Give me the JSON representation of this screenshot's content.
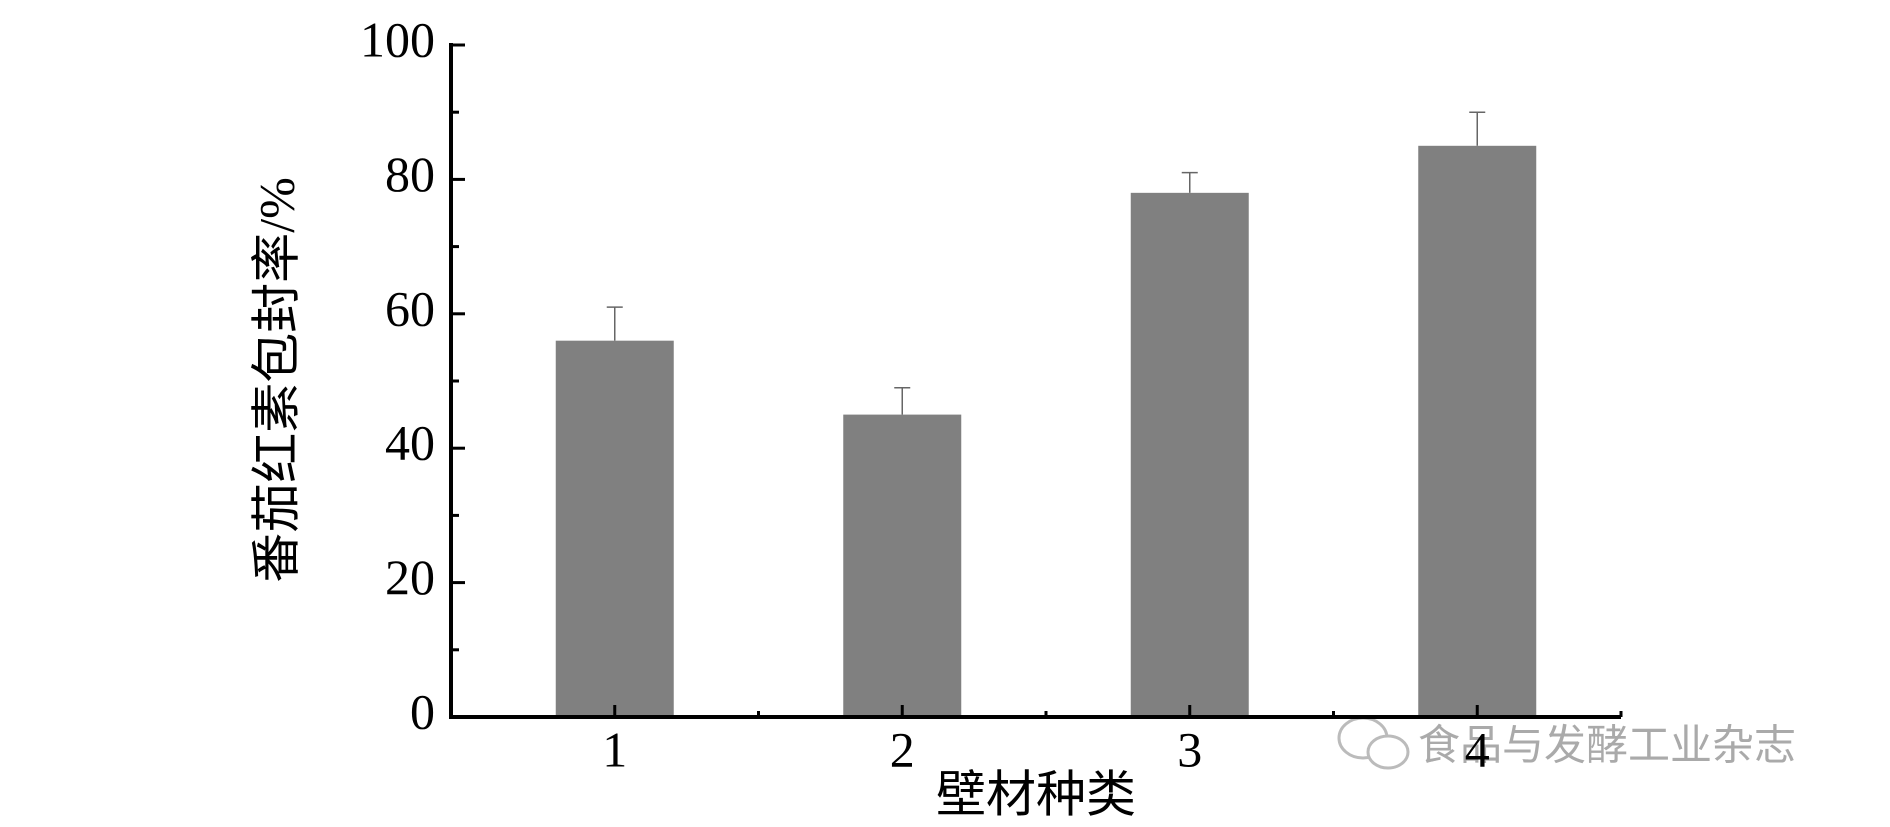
{
  "chart_data": {
    "type": "bar",
    "x_label": "壁材种类",
    "y_label": "番茄红素包封率/%",
    "categories": [
      "1",
      "2",
      "3",
      "4"
    ],
    "values": [
      56,
      45,
      78,
      85
    ],
    "errors": [
      5,
      4,
      3,
      5
    ],
    "color": "#808080",
    "ylim": [
      0,
      100
    ],
    "yticks": [
      0,
      20,
      40,
      60,
      80,
      100
    ],
    "grid": false,
    "watermark": "食品与发酵工业杂志"
  }
}
